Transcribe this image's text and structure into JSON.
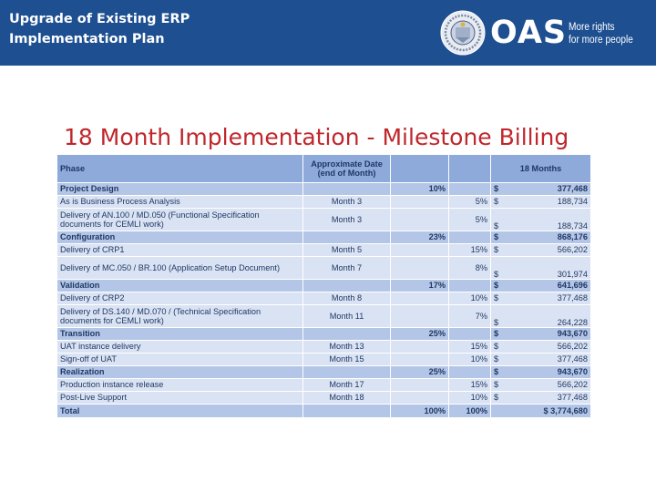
{
  "header": {
    "title_line1": "Upgrade of Existing ERP",
    "title_line2": "Implementation Plan",
    "logo_text": "OAS",
    "tagline_line1": "More rights",
    "tagline_line2": "for more people"
  },
  "slide": {
    "title": "18 Month Implementation - Milestone Billing"
  },
  "table": {
    "headers": {
      "phase": "Phase",
      "date_line1": "Approximate Date",
      "date_line2": "(end of Month)",
      "months": "18 Months"
    },
    "rows": [
      {
        "type": "phase",
        "label": "Project Design",
        "date": "",
        "phase_pct": "10%",
        "item_pct": "",
        "currency": "$",
        "amount": "377,468"
      },
      {
        "type": "item",
        "label": "As is Business Process Analysis",
        "date": "Month 3",
        "phase_pct": "",
        "item_pct": "5%",
        "currency": "$",
        "amount": "188,734"
      },
      {
        "type": "item_tall",
        "label": "Delivery of AN.100 / MD.050 (Functional Specification documents for CEMLI work)",
        "date": "Month 3",
        "phase_pct": "",
        "item_pct": "5%",
        "currency": "$",
        "amount": "188,734"
      },
      {
        "type": "phase",
        "label": "Configuration",
        "date": "",
        "phase_pct": "23%",
        "item_pct": "",
        "currency": "$",
        "amount": "868,176"
      },
      {
        "type": "item",
        "label": "Delivery of CRP1",
        "date": "Month 5",
        "phase_pct": "",
        "item_pct": "15%",
        "currency": "$",
        "amount": "566,202"
      },
      {
        "type": "item_tall",
        "label": "Delivery of MC.050 / BR.100 (Application Setup Document)",
        "date": "Month 7",
        "phase_pct": "",
        "item_pct": "8%",
        "currency": "$",
        "amount": "301,974"
      },
      {
        "type": "phase",
        "label": "Validation",
        "date": "",
        "phase_pct": "17%",
        "item_pct": "",
        "currency": "$",
        "amount": "641,696"
      },
      {
        "type": "item",
        "label": "Delivery of CRP2",
        "date": "Month 8",
        "phase_pct": "",
        "item_pct": "10%",
        "currency": "$",
        "amount": "377,468"
      },
      {
        "type": "item_tall",
        "label": "Delivery of DS.140 / MD.070 /  (Technical Specification documents for CEMLI work)",
        "date": "Month 11",
        "phase_pct": "",
        "item_pct": "7%",
        "currency": "$",
        "amount": "264,228"
      },
      {
        "type": "phase",
        "label": "Transition",
        "date": "",
        "phase_pct": "25%",
        "item_pct": "",
        "currency": "$",
        "amount": "943,670"
      },
      {
        "type": "item",
        "label": "UAT instance delivery",
        "date": "Month 13",
        "phase_pct": "",
        "item_pct": "15%",
        "currency": "$",
        "amount": "566,202"
      },
      {
        "type": "item",
        "label": "Sign-off of UAT",
        "date": "Month 15",
        "phase_pct": "",
        "item_pct": "10%",
        "currency": "$",
        "amount": "377,468"
      },
      {
        "type": "phase",
        "label": "Realization",
        "date": "",
        "phase_pct": "25%",
        "item_pct": "",
        "currency": "$",
        "amount": "943,670"
      },
      {
        "type": "item",
        "label": "Production instance release",
        "date": "Month 17",
        "phase_pct": "",
        "item_pct": "15%",
        "currency": "$",
        "amount": "566,202"
      },
      {
        "type": "item",
        "label": "Post-Live Support",
        "date": "Month 18",
        "phase_pct": "",
        "item_pct": "10%",
        "currency": "$",
        "amount": "377,468"
      },
      {
        "type": "total",
        "label": "Total",
        "date": "",
        "phase_pct": "100%",
        "item_pct": "100%",
        "currency": "",
        "amount": "$ 3,774,680"
      }
    ]
  },
  "colors": {
    "banner": "#1d4f91",
    "title": "#c0272d",
    "header_row": "#8eaadb",
    "phase_row": "#b4c6e7",
    "item_row": "#dae3f3",
    "table_text": "#1f3864"
  }
}
